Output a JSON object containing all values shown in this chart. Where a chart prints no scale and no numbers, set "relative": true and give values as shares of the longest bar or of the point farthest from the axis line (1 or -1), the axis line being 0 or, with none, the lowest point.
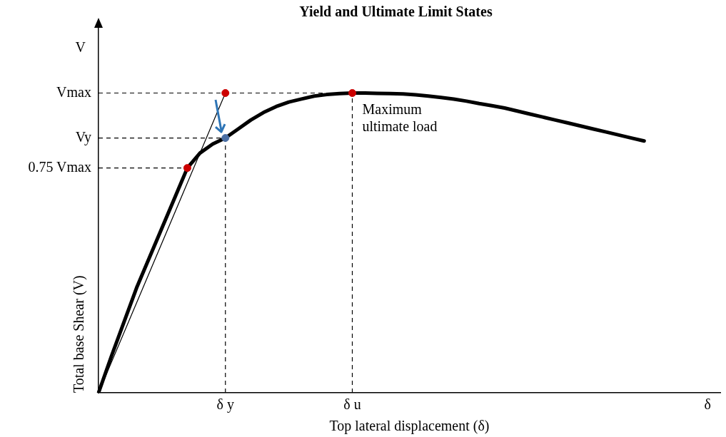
{
  "chart_data": {
    "type": "line",
    "relative": true,
    "title": "Yield and Ultimate Limit States",
    "xlabel": "Top lateral displacement (δ)",
    "ylabel": "Total base Shear (V)",
    "categories": [
      null,
      null,
      null,
      null,
      null,
      null,
      null,
      null,
      null,
      null,
      "δ y",
      null,
      null,
      null,
      null,
      null,
      null,
      null,
      null,
      null,
      "δ u",
      null,
      null,
      null,
      null,
      null,
      null,
      null,
      null,
      null,
      null,
      null,
      null,
      null,
      null,
      null,
      null,
      null,
      null,
      null,
      null,
      null,
      null,
      null,
      null,
      null,
      null,
      null,
      "δ",
      null
    ],
    "series": [
      {
        "type": "line",
        "color": "#000000",
        "values": [
          0,
          0.12,
          0.235,
          0.35,
          0.45,
          0.55,
          0.65,
          0.75,
          0.8,
          0.83,
          0.85,
          0.88,
          0.91,
          0.935,
          0.955,
          0.97,
          0.98,
          0.99,
          0.995,
          0.998,
          1,
          1,
          0.999,
          0.998,
          0.997,
          0.994,
          0.99,
          0.985,
          0.98,
          0.973,
          0.965,
          0.958,
          0.95,
          0.94,
          0.93,
          0.92,
          0.91,
          0.9,
          0.89,
          0.88,
          0.87,
          0.86,
          0.85,
          0.84,
          null,
          null,
          null,
          null,
          null,
          null
        ]
      },
      {
        "type": "line",
        "color": "#000000",
        "values": [
          0,
          null,
          null,
          null,
          null,
          null,
          null,
          null,
          null,
          null,
          1,
          null,
          null,
          null,
          null,
          null,
          null,
          null,
          null,
          null,
          null,
          null,
          null,
          null,
          null,
          null,
          null,
          null,
          null,
          null,
          null,
          null,
          null,
          null,
          null,
          null,
          null,
          null,
          null,
          null,
          null,
          null,
          null,
          null,
          null,
          null,
          null,
          null,
          null,
          null
        ]
      },
      {
        "type": "scatter",
        "marker": "circle",
        "color": "#cc0000",
        "values": [
          null,
          null,
          null,
          null,
          null,
          null,
          null,
          0.75,
          null,
          null,
          1,
          null,
          null,
          null,
          null,
          null,
          null,
          null,
          null,
          null,
          1,
          null,
          null,
          null,
          null,
          null,
          null,
          null,
          null,
          null,
          null,
          null,
          null,
          null,
          null,
          null,
          null,
          null,
          null,
          null,
          null,
          null,
          null,
          null,
          null,
          null,
          null,
          null,
          null,
          null
        ]
      },
      {
        "type": "scatter",
        "marker": "circle",
        "color": "#4a6fa5",
        "values": [
          null,
          null,
          null,
          null,
          null,
          null,
          null,
          null,
          null,
          null,
          0.85,
          null,
          null,
          null,
          null,
          null,
          null,
          null,
          null,
          null,
          null,
          null,
          null,
          null,
          null,
          null,
          null,
          null,
          null,
          null,
          null,
          null,
          null,
          null,
          null,
          null,
          null,
          null,
          null,
          null,
          null,
          null,
          null,
          null,
          null,
          null,
          null,
          null,
          null,
          null
        ]
      }
    ],
    "ref_lines": [
      {
        "axis": "y",
        "value": 1,
        "label": "Vmax",
        "line_style": "dashed",
        "color": "#000000"
      },
      {
        "axis": "y",
        "value": 0.85,
        "label": "Vy",
        "line_style": "dashed",
        "color": "#000000"
      },
      {
        "axis": "y",
        "value": 0.75,
        "label": "0.75 Vmax",
        "line_style": "dashed",
        "color": "#000000"
      },
      {
        "axis": "x",
        "value": "δ y",
        "line_style": "dashed",
        "color": "#000000"
      },
      {
        "axis": "x",
        "value": "δ u",
        "line_style": "dashed",
        "color": "#000000"
      }
    ],
    "annotations": [
      "V",
      {
        "text": "Maximum ultimate load",
        "x": "δ u",
        "y": 1
      }
    ],
    "grid": false,
    "legend": false
  }
}
